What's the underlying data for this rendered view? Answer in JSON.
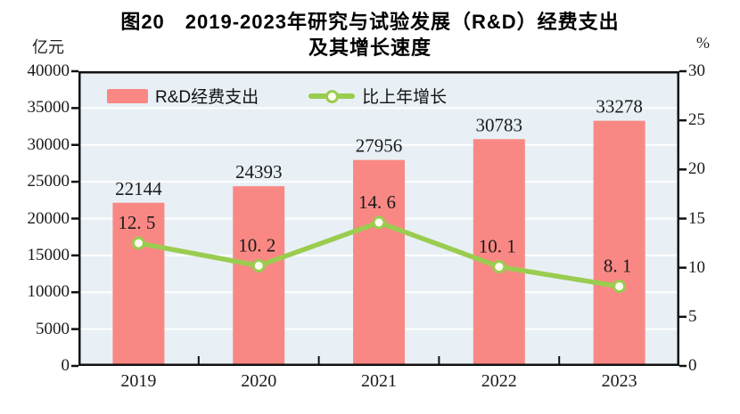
{
  "title": {
    "line1": "图20　2019-2023年研究与试验发展（R&D）经费支出",
    "line2": "及其增长速度"
  },
  "axes": {
    "left_unit": "亿元",
    "right_unit": "%",
    "left_ticks": [
      "40000",
      "35000",
      "30000",
      "25000",
      "20000",
      "15000",
      "10000",
      "5000",
      "0"
    ],
    "right_ticks": [
      "30",
      "25",
      "20",
      "15",
      "10",
      "5",
      "0"
    ]
  },
  "legend": [
    {
      "label": "R&D经费支出"
    },
    {
      "label": "比上年增长"
    }
  ],
  "colors": {
    "bar": "#f98884",
    "line": "#9acc50",
    "marker_fill": "#fdfdf0",
    "plot_bg": "#e8f0f5",
    "grid": "#ffffff",
    "axis": "#111111",
    "label_text": "#1a1a1a"
  },
  "chart_data": {
    "type": "bar+line combo",
    "title": "图20 2019-2023年研究与试验发展（R&D）经费支出及其增长速度",
    "categories": [
      "2019",
      "2020",
      "2021",
      "2022",
      "2023"
    ],
    "series": [
      {
        "name": "R&D经费支出",
        "type": "bar",
        "axis": "left",
        "values": [
          22144,
          24393,
          27956,
          30783,
          33278
        ],
        "labels": [
          "22144",
          "24393",
          "27956",
          "30783",
          "33278"
        ]
      },
      {
        "name": "比上年增长",
        "type": "line",
        "axis": "right",
        "values": [
          12.5,
          10.2,
          14.6,
          10.1,
          8.1
        ],
        "labels": [
          "12. 5",
          "10. 2",
          "14. 6",
          "10. 1",
          "8. 1"
        ]
      }
    ],
    "left_ylabel": "亿元",
    "right_ylabel": "%",
    "left_ylim": [
      0,
      40000
    ],
    "right_ylim": [
      0,
      30
    ],
    "left_tick_step": 5000,
    "right_tick_step": 5,
    "grid": true,
    "legend_position": "top-inside"
  }
}
